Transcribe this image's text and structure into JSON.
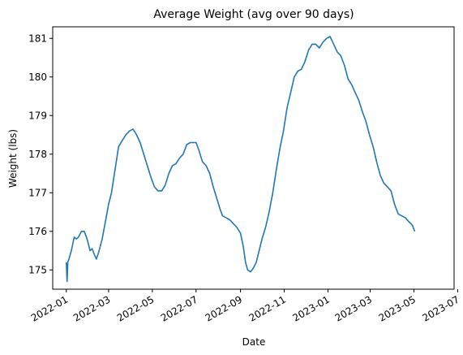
{
  "chart_data": {
    "type": "line",
    "title": "Average Weight (avg over 90 days)",
    "xlabel": "Date",
    "ylabel": "Weight (lbs)",
    "xlim": [
      "2021-12-13",
      "2023-06-26"
    ],
    "ylim": [
      174.5,
      181.3
    ],
    "grid": false,
    "x_ticks": [
      "2022-01",
      "2022-03",
      "2022-05",
      "2022-07",
      "2022-09",
      "2022-11",
      "2023-01",
      "2023-03",
      "2023-05",
      "2023-07"
    ],
    "y_ticks": [
      175,
      176,
      177,
      178,
      179,
      180,
      181
    ],
    "series": [
      {
        "color": "#1f77b4",
        "points": [
          [
            "2022-01-01",
            175.2
          ],
          [
            "2022-01-02",
            174.7
          ],
          [
            "2022-01-03",
            175.2
          ],
          [
            "2022-01-05",
            175.3
          ],
          [
            "2022-01-08",
            175.5
          ],
          [
            "2022-01-12",
            175.85
          ],
          [
            "2022-01-15",
            175.8
          ],
          [
            "2022-01-18",
            175.85
          ],
          [
            "2022-01-22",
            176.0
          ],
          [
            "2022-01-26",
            176.0
          ],
          [
            "2022-01-30",
            175.8
          ],
          [
            "2022-02-03",
            175.5
          ],
          [
            "2022-02-06",
            175.55
          ],
          [
            "2022-02-09",
            175.4
          ],
          [
            "2022-02-12",
            175.28
          ],
          [
            "2022-02-15",
            175.45
          ],
          [
            "2022-02-20",
            175.8
          ],
          [
            "2022-02-25",
            176.3
          ],
          [
            "2022-03-01",
            176.7
          ],
          [
            "2022-03-05",
            177.0
          ],
          [
            "2022-03-10",
            177.6
          ],
          [
            "2022-03-15",
            178.2
          ],
          [
            "2022-03-20",
            178.35
          ],
          [
            "2022-03-25",
            178.5
          ],
          [
            "2022-03-30",
            178.6
          ],
          [
            "2022-04-04",
            178.65
          ],
          [
            "2022-04-09",
            178.5
          ],
          [
            "2022-04-14",
            178.3
          ],
          [
            "2022-04-19",
            178.0
          ],
          [
            "2022-04-24",
            177.7
          ],
          [
            "2022-04-29",
            177.4
          ],
          [
            "2022-05-04",
            177.15
          ],
          [
            "2022-05-09",
            177.05
          ],
          [
            "2022-05-14",
            177.05
          ],
          [
            "2022-05-19",
            177.2
          ],
          [
            "2022-05-24",
            177.5
          ],
          [
            "2022-05-29",
            177.7
          ],
          [
            "2022-06-03",
            177.75
          ],
          [
            "2022-06-08",
            177.9
          ],
          [
            "2022-06-13",
            178.0
          ],
          [
            "2022-06-18",
            178.25
          ],
          [
            "2022-06-23",
            178.3
          ],
          [
            "2022-06-28",
            178.3
          ],
          [
            "2022-07-01",
            178.3
          ],
          [
            "2022-07-05",
            178.1
          ],
          [
            "2022-07-10",
            177.8
          ],
          [
            "2022-07-15",
            177.7
          ],
          [
            "2022-07-20",
            177.5
          ],
          [
            "2022-07-25",
            177.15
          ],
          [
            "2022-07-30",
            176.85
          ],
          [
            "2022-08-04",
            176.55
          ],
          [
            "2022-08-07",
            176.4
          ],
          [
            "2022-08-12",
            176.35
          ],
          [
            "2022-08-17",
            176.3
          ],
          [
            "2022-08-22",
            176.2
          ],
          [
            "2022-08-27",
            176.1
          ],
          [
            "2022-09-01",
            175.95
          ],
          [
            "2022-09-05",
            175.6
          ],
          [
            "2022-09-08",
            175.2
          ],
          [
            "2022-09-11",
            175.0
          ],
          [
            "2022-09-15",
            174.95
          ],
          [
            "2022-09-19",
            175.05
          ],
          [
            "2022-09-23",
            175.2
          ],
          [
            "2022-09-27",
            175.5
          ],
          [
            "2022-10-01",
            175.8
          ],
          [
            "2022-10-06",
            176.1
          ],
          [
            "2022-10-11",
            176.5
          ],
          [
            "2022-10-16",
            177.0
          ],
          [
            "2022-10-21",
            177.6
          ],
          [
            "2022-10-26",
            178.15
          ],
          [
            "2022-10-31",
            178.6
          ],
          [
            "2022-11-05",
            179.2
          ],
          [
            "2022-11-10",
            179.6
          ],
          [
            "2022-11-15",
            180.0
          ],
          [
            "2022-11-20",
            180.15
          ],
          [
            "2022-11-25",
            180.2
          ],
          [
            "2022-11-30",
            180.4
          ],
          [
            "2022-12-05",
            180.7
          ],
          [
            "2022-12-10",
            180.85
          ],
          [
            "2022-12-15",
            180.85
          ],
          [
            "2022-12-20",
            180.75
          ],
          [
            "2022-12-25",
            180.9
          ],
          [
            "2022-12-30",
            181.0
          ],
          [
            "2023-01-04",
            181.05
          ],
          [
            "2023-01-09",
            180.85
          ],
          [
            "2023-01-14",
            180.65
          ],
          [
            "2023-01-19",
            180.55
          ],
          [
            "2023-01-24",
            180.3
          ],
          [
            "2023-01-29",
            179.95
          ],
          [
            "2023-02-03",
            179.8
          ],
          [
            "2023-02-08",
            179.6
          ],
          [
            "2023-02-13",
            179.4
          ],
          [
            "2023-02-18",
            179.1
          ],
          [
            "2023-02-23",
            178.85
          ],
          [
            "2023-02-28",
            178.5
          ],
          [
            "2023-03-05",
            178.2
          ],
          [
            "2023-03-10",
            177.8
          ],
          [
            "2023-03-15",
            177.45
          ],
          [
            "2023-03-20",
            177.25
          ],
          [
            "2023-03-25",
            177.15
          ],
          [
            "2023-03-30",
            177.05
          ],
          [
            "2023-04-04",
            176.7
          ],
          [
            "2023-04-09",
            176.45
          ],
          [
            "2023-04-14",
            176.4
          ],
          [
            "2023-04-19",
            176.35
          ],
          [
            "2023-04-24",
            176.25
          ],
          [
            "2023-04-29",
            176.15
          ],
          [
            "2023-05-02",
            176.0
          ]
        ]
      }
    ]
  }
}
